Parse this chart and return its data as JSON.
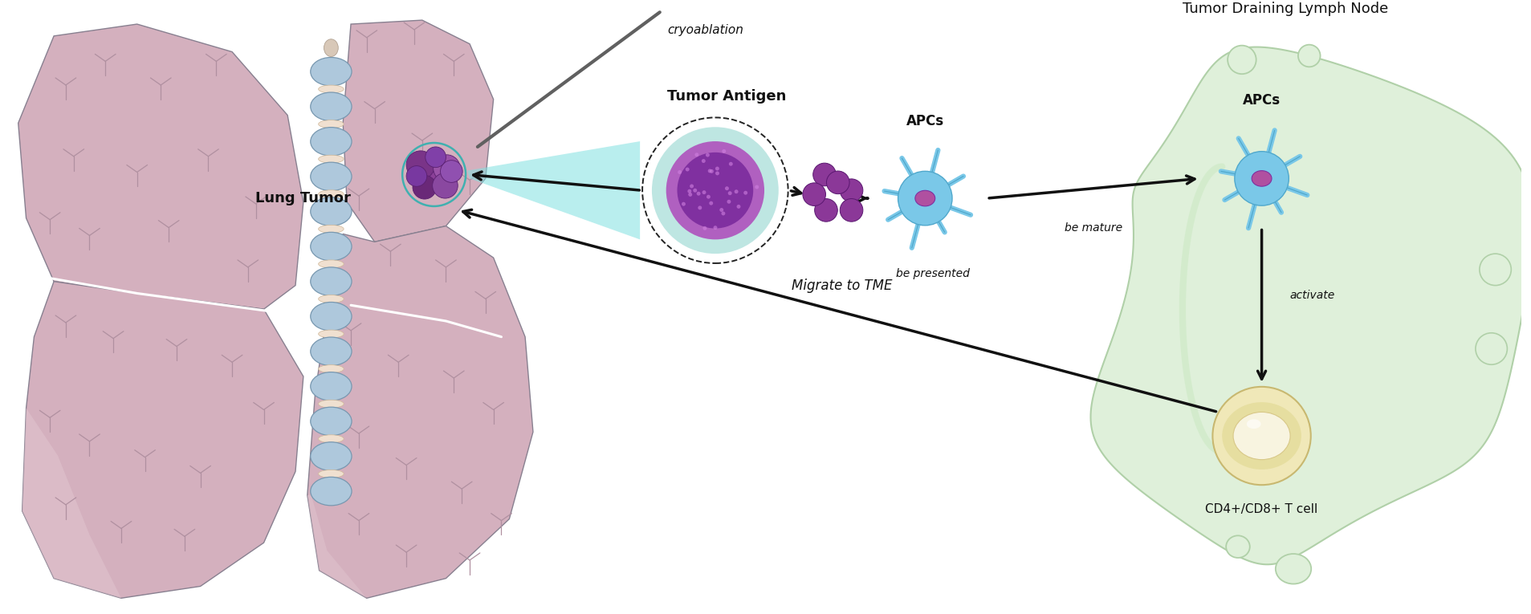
{
  "bg_color": "#ffffff",
  "lung_fill": "#d4b0be",
  "lung_fill_light": "#e0c4ce",
  "lung_edge": "#888090",
  "lobe_line": "#ffffff",
  "spine_fill": "#aec8dc",
  "spine_edge": "#7898b0",
  "spine_joint": "#f0e0d0",
  "lymph_fill": "#dff0da",
  "lymph_edge": "#b0d0a8",
  "apc_body": "#7ac8e8",
  "apc_body_dark": "#50a8cc",
  "apc_nucleus": "#b050a0",
  "tcell_outer": "#f0e8b8",
  "tcell_ring": "#e0d890",
  "tcell_inner": "#f8f4e0",
  "antigen": "#8b3898",
  "tumor_purple": "#7a3a8a",
  "tumor_light": "#9a5aaa",
  "tumor_teal_edge": "#40b0b0",
  "cell_teal": "#70c8c0",
  "cell_purple_core": "#8030a0",
  "beam_teal": "#80e0e0",
  "arrow_col": "#111111",
  "text_col": "#111111",
  "needle_col": "#606060",
  "marker_col": "#b090a0",
  "label_lung_tumor": "Lung Tumor",
  "label_tumor_antigen": "Tumor Antigen",
  "label_apcs1": "APCs",
  "label_apcs2": "APCs",
  "label_be_presented": "be presented",
  "label_be_mature": "be mature",
  "label_activate": "activate",
  "label_migrate": "Migrate to TME",
  "label_tdln": "Tumor Draining Lymph Node",
  "label_tcell": "CD4+/CD8+ T cell",
  "label_cryo": "cryoablation",
  "figsize": [
    19.08,
    7.65
  ],
  "dpi": 100
}
